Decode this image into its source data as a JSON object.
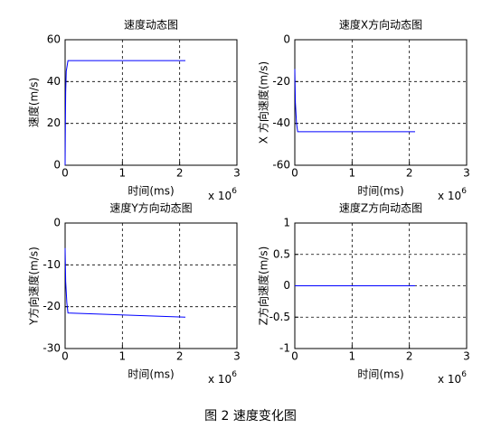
{
  "chart_data": [
    {
      "type": "line",
      "title": "速度动态图",
      "x_label": "时间(ms)",
      "y_label": "速度(m/s)",
      "x_scale_label": {
        "base": "x 10",
        "exponent": "6"
      },
      "xlim": [
        0,
        3
      ],
      "xticks": [
        0,
        1,
        2,
        3
      ],
      "ylim": [
        0,
        60
      ],
      "yticks": [
        0,
        20,
        40,
        60
      ],
      "grid": true,
      "series": [
        {
          "color": "#0000ff",
          "x": [
            0,
            0.005,
            0.01,
            0.02,
            0.05,
            2.1
          ],
          "values": [
            0,
            20,
            35,
            45,
            50,
            50
          ]
        }
      ]
    },
    {
      "type": "line",
      "title": "速度X方向动态图",
      "x_label": "时间(ms)",
      "y_label": "X 方向速度(m/s)",
      "x_scale_label": {
        "base": "x 10",
        "exponent": "6"
      },
      "xlim": [
        0,
        3
      ],
      "xticks": [
        0,
        1,
        2,
        3
      ],
      "ylim": [
        -60,
        0
      ],
      "yticks": [
        -60,
        -40,
        -20,
        0
      ],
      "grid": true,
      "series": [
        {
          "color": "#0000ff",
          "x": [
            0,
            0.01,
            0.03,
            0.05,
            2.1
          ],
          "values": [
            -14,
            -30,
            -40,
            -44,
            -44
          ]
        }
      ]
    },
    {
      "type": "line",
      "title": "速度Y方向动态图",
      "x_label": "时间(ms)",
      "y_label": "Y方向速度(m/s)",
      "x_scale_label": {
        "base": "x 10",
        "exponent": "6"
      },
      "xlim": [
        0,
        3
      ],
      "xticks": [
        0,
        1,
        2,
        3
      ],
      "ylim": [
        -30,
        0
      ],
      "yticks": [
        -30,
        -20,
        -10,
        0
      ],
      "grid": true,
      "series": [
        {
          "color": "#0000ff",
          "x": [
            0,
            0.01,
            0.03,
            0.05,
            2.1
          ],
          "values": [
            -6,
            -14,
            -19,
            -21.5,
            -22.5
          ]
        }
      ]
    },
    {
      "type": "line",
      "title": "速度Z方向动态图",
      "x_label": "时间(ms)",
      "y_label": "Z方向速度(m/s)",
      "x_scale_label": {
        "base": "x 10",
        "exponent": "6"
      },
      "xlim": [
        0,
        3
      ],
      "xticks": [
        0,
        1,
        2,
        3
      ],
      "ylim": [
        -1,
        1
      ],
      "yticks": [
        -1,
        -0.5,
        0,
        0.5,
        1
      ],
      "grid": true,
      "series": [
        {
          "color": "#0000ff",
          "x": [
            0,
            2.1
          ],
          "values": [
            0,
            0
          ]
        }
      ]
    }
  ],
  "caption": "图 2  速度变化图"
}
